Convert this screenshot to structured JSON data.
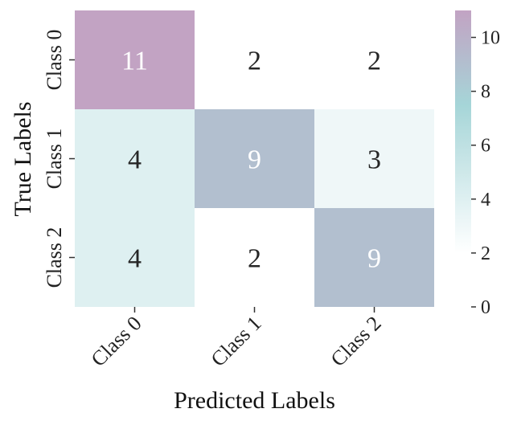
{
  "chart_data": {
    "type": "heatmap",
    "title": "",
    "xlabel": "Predicted Labels",
    "ylabel": "True Labels",
    "x_categories": [
      "Class 0",
      "Class 1",
      "Class 2"
    ],
    "y_categories": [
      "Class 0",
      "Class 1",
      "Class 2"
    ],
    "values": [
      [
        11,
        2,
        2
      ],
      [
        4,
        9,
        3
      ],
      [
        4,
        2,
        9
      ]
    ],
    "colorbar": {
      "range": [
        0,
        11
      ],
      "ticks": [
        "0",
        "2",
        "4",
        "6",
        "8",
        "10"
      ]
    },
    "colors": {
      "low": "#ffffff",
      "mid": "#7fc3c7",
      "high": "#a87ba9"
    }
  }
}
